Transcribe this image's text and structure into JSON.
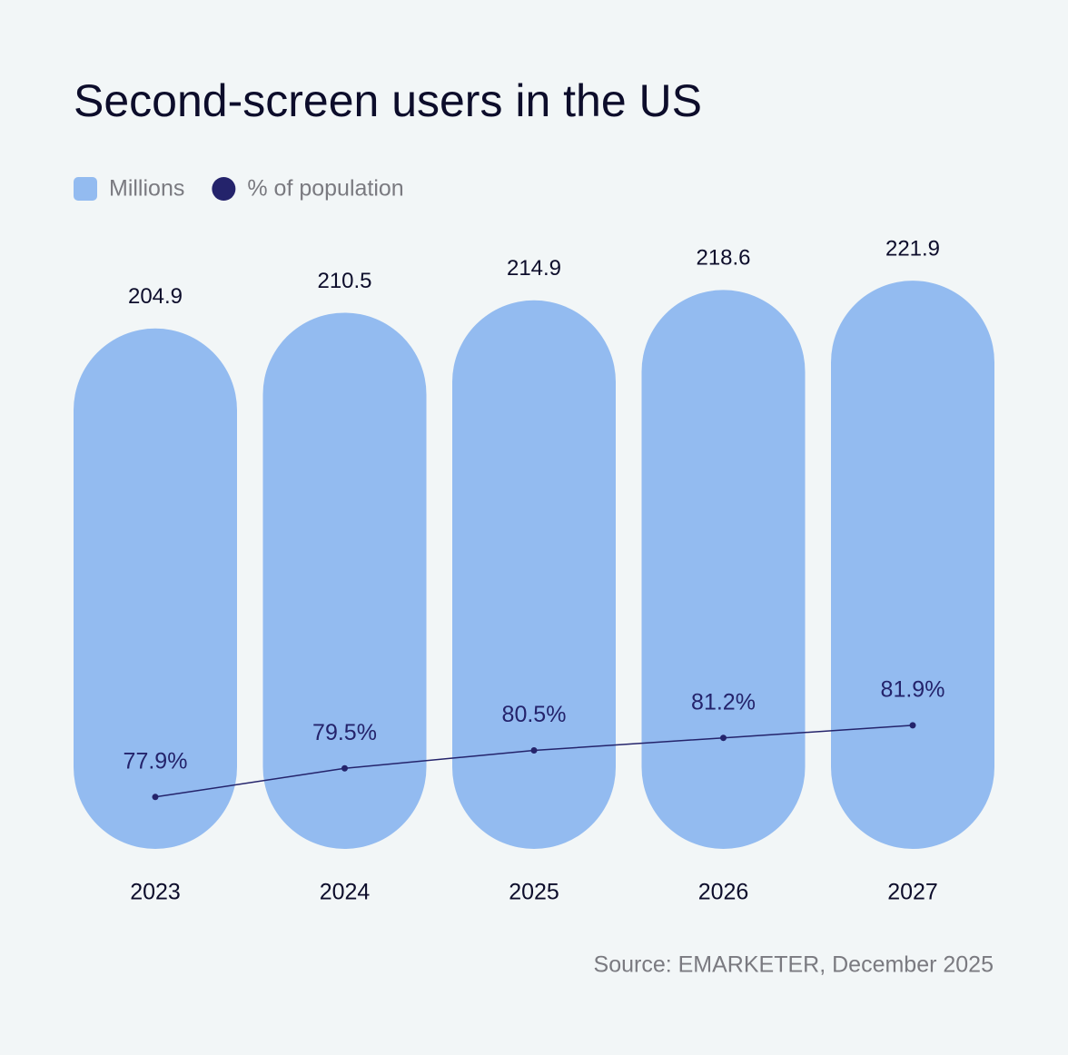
{
  "chart_data": {
    "type": "bar",
    "title": "Second-screen users in the US",
    "source": "Source: EMARKETER, December 2025",
    "categories": [
      "2023",
      "2024",
      "2025",
      "2026",
      "2027"
    ],
    "ylim": [
      20,
      230
    ],
    "y2lim": [
      75,
      108
    ],
    "series": [
      {
        "name": "Millions",
        "type": "bar",
        "color": "#93bbf0",
        "values": [
          204.9,
          210.5,
          214.9,
          218.6,
          221.9
        ]
      },
      {
        "name": "% of population",
        "type": "line",
        "axis": "y2",
        "color": "#24236b",
        "values": [
          77.9,
          79.5,
          80.5,
          81.2,
          81.9
        ],
        "value_labels": [
          "77.9%",
          "79.5%",
          "80.5%",
          "81.2%",
          "81.9%"
        ]
      }
    ]
  }
}
